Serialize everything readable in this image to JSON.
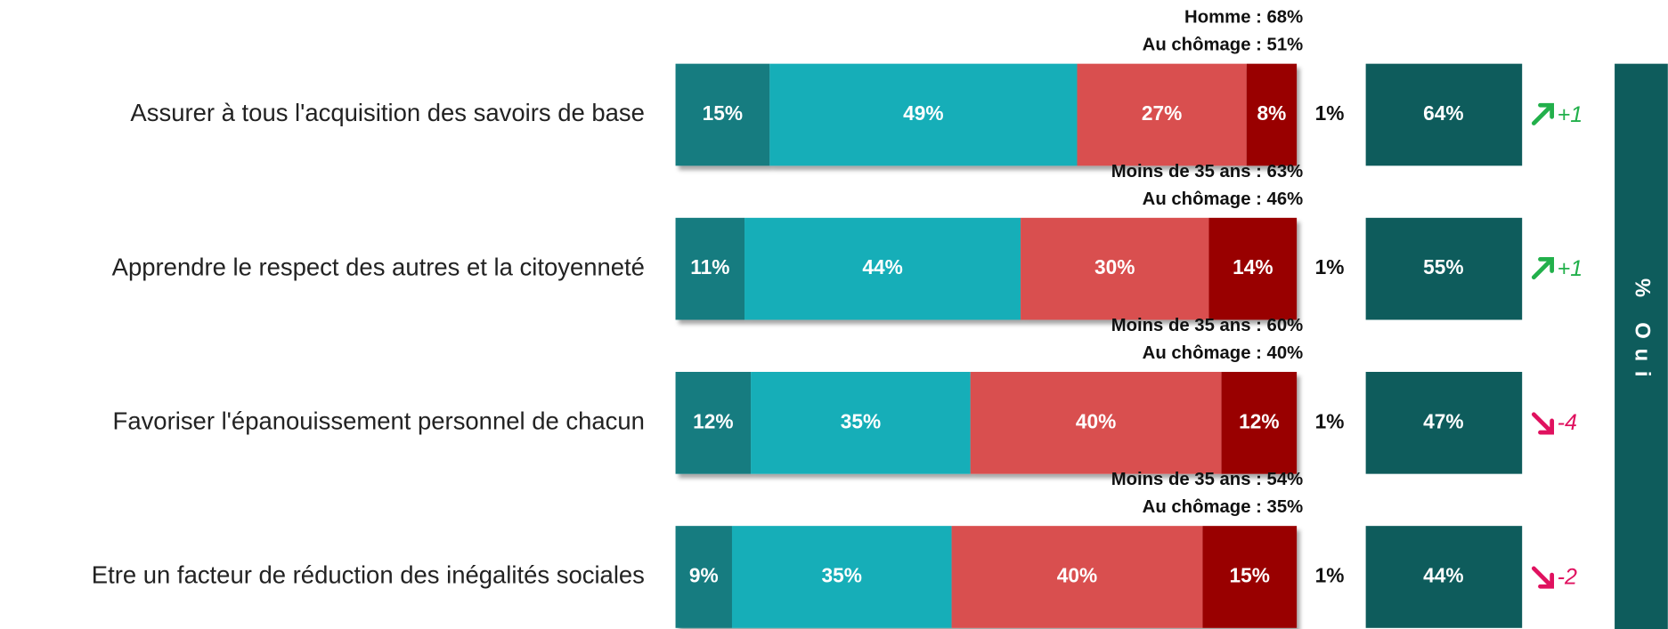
{
  "chart_data": {
    "type": "bar",
    "orientation": "horizontal",
    "stacked": true,
    "categories": [
      "Assurer à tous l'acquisition des savoirs de base",
      "Apprendre le respect des autres et la citoyenneté",
      "Favoriser l'épanouissement personnel de chacun",
      "Etre un facteur de réduction des inégalités sociales"
    ],
    "series": [
      {
        "color": "#147b80",
        "values": [
          15,
          11,
          12,
          9
        ],
        "value_labels": [
          "15%",
          "11%",
          "12%",
          "9%"
        ]
      },
      {
        "color": "#14aeb8",
        "values": [
          49,
          44,
          35,
          35
        ],
        "value_labels": [
          "49%",
          "44%",
          "35%",
          "35%"
        ]
      },
      {
        "color": "#d94f4f",
        "values": [
          27,
          30,
          40,
          40
        ],
        "value_labels": [
          "27%",
          "30%",
          "40%",
          "40%"
        ]
      },
      {
        "color": "#990000",
        "values": [
          8,
          14,
          12,
          15
        ],
        "value_labels": [
          "8%",
          "14%",
          "12%",
          "15%"
        ]
      }
    ],
    "no_answer": {
      "values": [
        1,
        1,
        1,
        1
      ],
      "value_labels": [
        "1%",
        "1%",
        "1%",
        "1%"
      ]
    },
    "oui": {
      "title": "% Oui",
      "color": "#0e5c5c",
      "values": [
        64,
        55,
        47,
        44
      ],
      "value_labels": [
        "64%",
        "55%",
        "47%",
        "44%"
      ]
    },
    "trend": {
      "up_color": "#22b04b",
      "down_color": "#e0115f",
      "values": [
        1,
        1,
        -4,
        -2
      ],
      "value_labels": [
        "+1",
        "+1",
        "-4",
        "-2"
      ]
    },
    "annotations": [
      [
        "Homme : 68%",
        "Au chômage : 51%"
      ],
      [
        "Moins de 35 ans : 63%",
        "Au chômage : 46%"
      ],
      [
        "Moins de 35 ans : 60%",
        "Au chômage : 40%"
      ],
      [
        "Moins de 35 ans : 54%",
        "Au chômage : 35%"
      ]
    ]
  }
}
